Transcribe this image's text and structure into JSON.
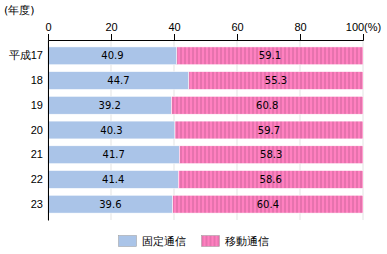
{
  "chart_data": {
    "type": "bar",
    "orientation": "horizontal",
    "stacked": true,
    "ylabel": "(年度)",
    "categories": [
      "平成17",
      "18",
      "19",
      "20",
      "21",
      "22",
      "23"
    ],
    "series": [
      {
        "name": "固定通信",
        "color": "#aac4e8",
        "values": [
          40.9,
          44.7,
          39.2,
          40.3,
          41.7,
          41.4,
          39.6
        ]
      },
      {
        "name": "移動通信",
        "color": "#ff80c0",
        "values": [
          59.1,
          55.3,
          60.8,
          59.7,
          58.3,
          58.6,
          60.4
        ]
      }
    ],
    "xlim": [
      0,
      100
    ],
    "xticks": [
      0,
      20,
      40,
      60,
      80,
      {
        "value": 100,
        "label": "100(%)"
      }
    ],
    "grid": true,
    "data_labels": true,
    "legend": "bottom"
  }
}
